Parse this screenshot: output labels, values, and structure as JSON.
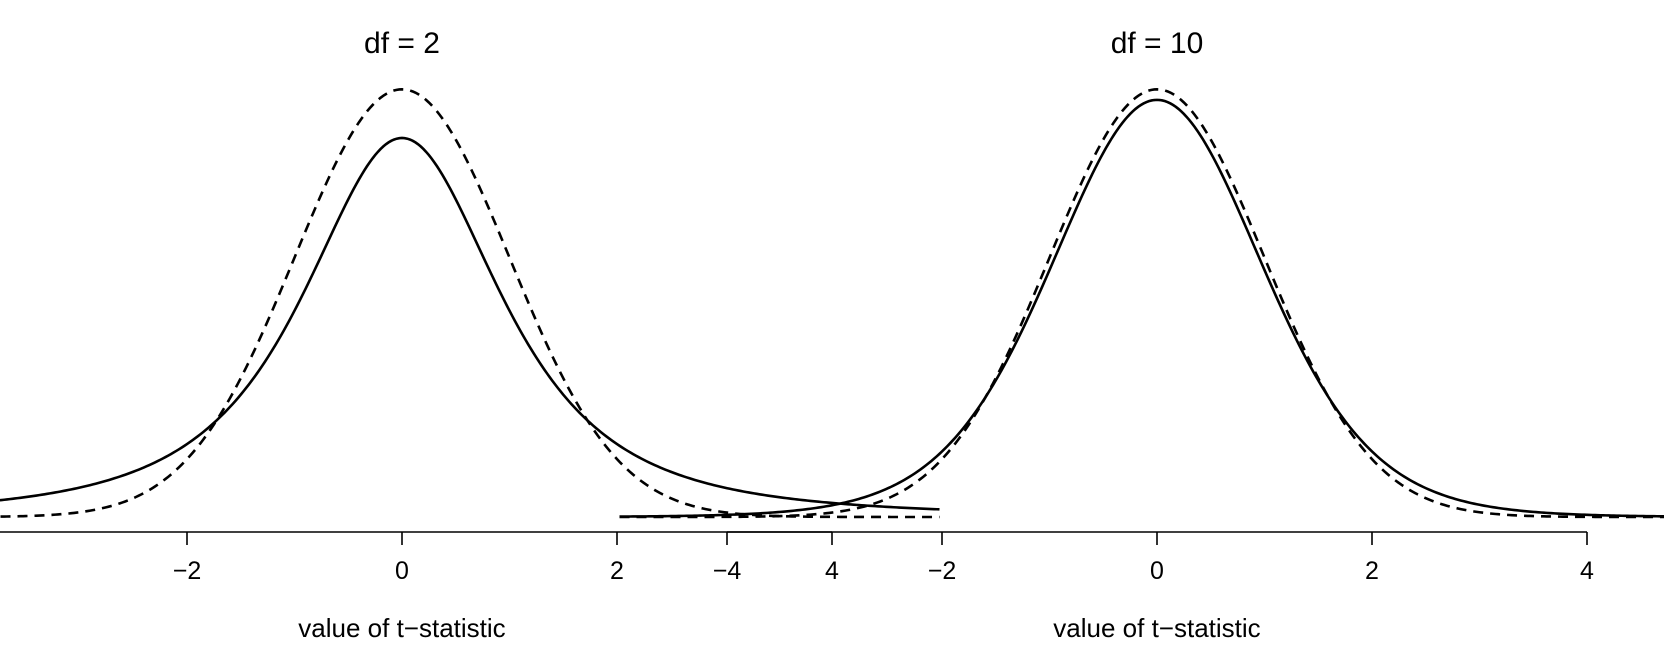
{
  "chart_data": [
    {
      "type": "line",
      "title": "df = 2",
      "xlabel": "value of t−statistic",
      "ylabel": "",
      "xlim": [
        -5,
        5
      ],
      "ylim": [
        0,
        0.42
      ],
      "xticks": [
        -4,
        -2,
        0,
        2,
        4
      ],
      "xtick_labels": [
        "−4",
        "−2",
        "0",
        "2",
        "4"
      ],
      "y_axis_shown": false,
      "grid": false,
      "legend": "none",
      "series": [
        {
          "style": "solid",
          "distribution": "t",
          "df": 2,
          "x": [
            -5,
            -4,
            -3,
            -2,
            -1.5,
            -1,
            -0.5,
            0,
            0.5,
            1,
            1.5,
            2,
            3,
            4,
            5
          ],
          "y": [
            0.0071,
            0.0131,
            0.0274,
            0.068,
            0.1134,
            0.1925,
            0.302,
            0.3536,
            0.302,
            0.1925,
            0.1134,
            0.068,
            0.0274,
            0.0131,
            0.0071
          ]
        },
        {
          "style": "dashed",
          "distribution": "normal",
          "x": [
            -5,
            -4,
            -3,
            -2,
            -1.5,
            -1,
            -0.5,
            0,
            0.5,
            1,
            1.5,
            2,
            3,
            4,
            5
          ],
          "y": [
            0.0,
            0.0001,
            0.0044,
            0.054,
            0.1295,
            0.242,
            0.3521,
            0.3989,
            0.3521,
            0.242,
            0.1295,
            0.054,
            0.0044,
            0.0001,
            0.0
          ]
        }
      ]
    },
    {
      "type": "line",
      "title": "df = 10",
      "xlabel": "value of t−statistic",
      "ylabel": "",
      "xlim": [
        -5,
        5
      ],
      "ylim": [
        0,
        0.42
      ],
      "xticks": [
        -4,
        -2,
        0,
        2,
        4
      ],
      "xtick_labels": [
        "−4",
        "−2",
        "0",
        "2",
        "4"
      ],
      "y_axis_shown": false,
      "grid": false,
      "legend": "none",
      "series": [
        {
          "style": "solid",
          "distribution": "t",
          "df": 10,
          "x": [
            -5,
            -4,
            -3,
            -2,
            -1.5,
            -1,
            -0.5,
            0,
            0.5,
            1,
            1.5,
            2,
            3,
            4,
            5
          ],
          "y": [
            0.0004,
            0.002,
            0.0114,
            0.0611,
            0.1274,
            0.2304,
            0.3397,
            0.3891,
            0.3397,
            0.2304,
            0.1274,
            0.0611,
            0.0114,
            0.002,
            0.0004
          ]
        },
        {
          "style": "dashed",
          "distribution": "normal",
          "x": [
            -5,
            -4,
            -3,
            -2,
            -1.5,
            -1,
            -0.5,
            0,
            0.5,
            1,
            1.5,
            2,
            3,
            4,
            5
          ],
          "y": [
            0.0,
            0.0001,
            0.0044,
            0.054,
            0.1295,
            0.242,
            0.3521,
            0.3989,
            0.3521,
            0.242,
            0.1295,
            0.054,
            0.0044,
            0.0001,
            0.0
          ]
        }
      ]
    }
  ]
}
